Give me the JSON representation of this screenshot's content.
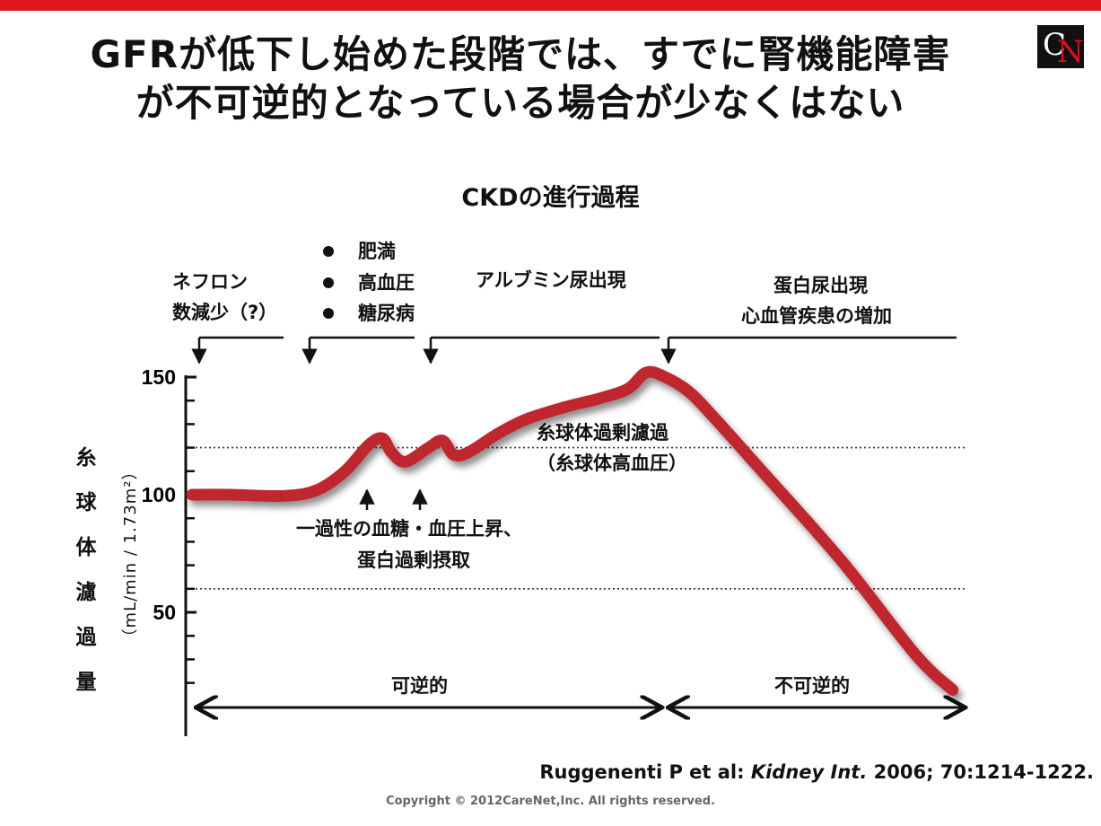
{
  "slide": {
    "title_line1": "GFRが低下し始めた段階では、すでに腎機能障害",
    "title_line2": "が不可逆的となっている場合が少なくはない",
    "logo_letters": "CN"
  },
  "annotations": {
    "nephron": [
      "ネフロン",
      "数減少（?）"
    ],
    "risk_factors": [
      "肥満",
      "高血圧",
      "糖尿病"
    ],
    "albuminuria": "アルブミン尿出現",
    "proteinuria": [
      "蛋白尿出現",
      "心血管疾患の増加"
    ],
    "hyperfiltration": [
      "糸球体過剰濾過",
      "（糸球体高血圧）"
    ],
    "transient": [
      "一過性の血糖・血圧上昇、",
      "蛋白過剰摂取"
    ],
    "reversible": "可逆的",
    "irreversible": "不可逆的"
  },
  "citation": {
    "authors": "Ruggenenti P et al: ",
    "journal": "Kidney Int.",
    "details": " 2006; 70:1214-1222."
  },
  "copyright": "Copyright © 2012CareNet,Inc. All rights reserved.",
  "chart_data": {
    "type": "line",
    "title": "CKDの進行過程",
    "ylabel": "糸球体濾過量",
    "yunit": "（mL/min / 1.73m²）",
    "ylim": [
      10,
      160
    ],
    "yticks": [
      150,
      100,
      50
    ],
    "reference_lines": [
      120,
      60
    ],
    "series": [
      {
        "color": "#c0272d",
        "points": [
          [
            0,
            100
          ],
          [
            40,
            100
          ],
          [
            100,
            99.5
          ],
          [
            135,
            102
          ],
          [
            165,
            110
          ],
          [
            190,
            121
          ],
          [
            205,
            124
          ],
          [
            215,
            118
          ],
          [
            230,
            114
          ],
          [
            255,
            120
          ],
          [
            270,
            123
          ],
          [
            282,
            117
          ],
          [
            298,
            118
          ],
          [
            330,
            126
          ],
          [
            360,
            132
          ],
          [
            400,
            137
          ],
          [
            440,
            141
          ],
          [
            470,
            145
          ],
          [
            490,
            152
          ],
          [
            510,
            150
          ],
          [
            535,
            144
          ],
          [
            560,
            134
          ],
          [
            610,
            112
          ],
          [
            700,
            72
          ],
          [
            780,
            32
          ],
          [
            820,
            17
          ]
        ]
      }
    ],
    "x_range": [
      0,
      830
    ]
  },
  "colors": {
    "accent": "#e2161f",
    "curve": "#c0272d"
  }
}
